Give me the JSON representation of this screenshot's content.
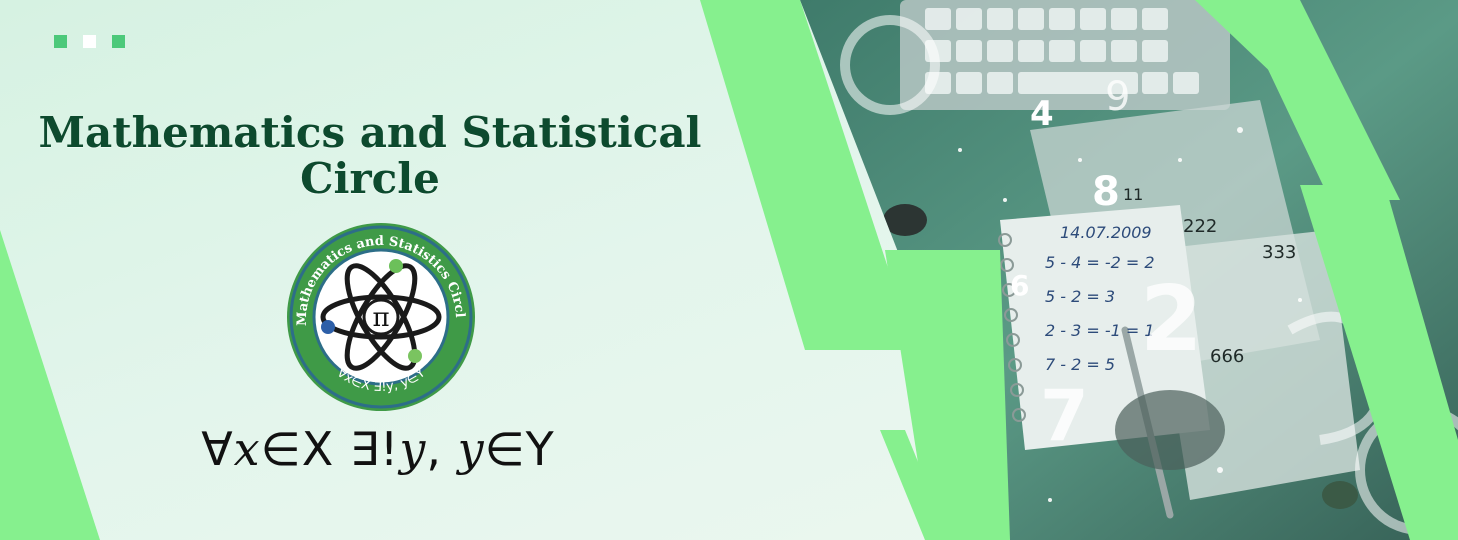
{
  "banner": {
    "title_line1": "Mathematics and Statistical",
    "title_line2": "Circle",
    "formula": {
      "forall": "∀",
      "x": "𝑥",
      "in1": "∈X",
      "exists": " ∃!",
      "y1": "𝑦",
      "comma": ", ",
      "y2": "𝑦",
      "in2": "∈Y"
    }
  },
  "logo": {
    "ring_text": "Mathematics and Statistics Circle",
    "bottom_text": "∀x∈X ∃!y, y∈Y",
    "center_symbol": "π"
  },
  "photo_numbers": {
    "notebook_date": "14.07.2009",
    "eq1": "5 - 4 = -2 = 2",
    "eq2": "5 - 2 = 3",
    "eq3": "2 - 3 = -1 = 1",
    "eq4": "7 - 2 = 5",
    "page_num_1": "222",
    "page_num_2": "666",
    "page_num_3": "333",
    "page_num_4": "11",
    "digit_8": "8",
    "digit_9": "9",
    "digit_4": "4",
    "digit_7": "7",
    "digit_2": "2",
    "digit_6": "6"
  },
  "colors": {
    "accent_green": "#86f08e",
    "dark_green": "#0d4a2e",
    "logo_ring": "#3f9a47",
    "dot_green": "#4cc97a",
    "photo_tint": "#4f8f7d"
  }
}
